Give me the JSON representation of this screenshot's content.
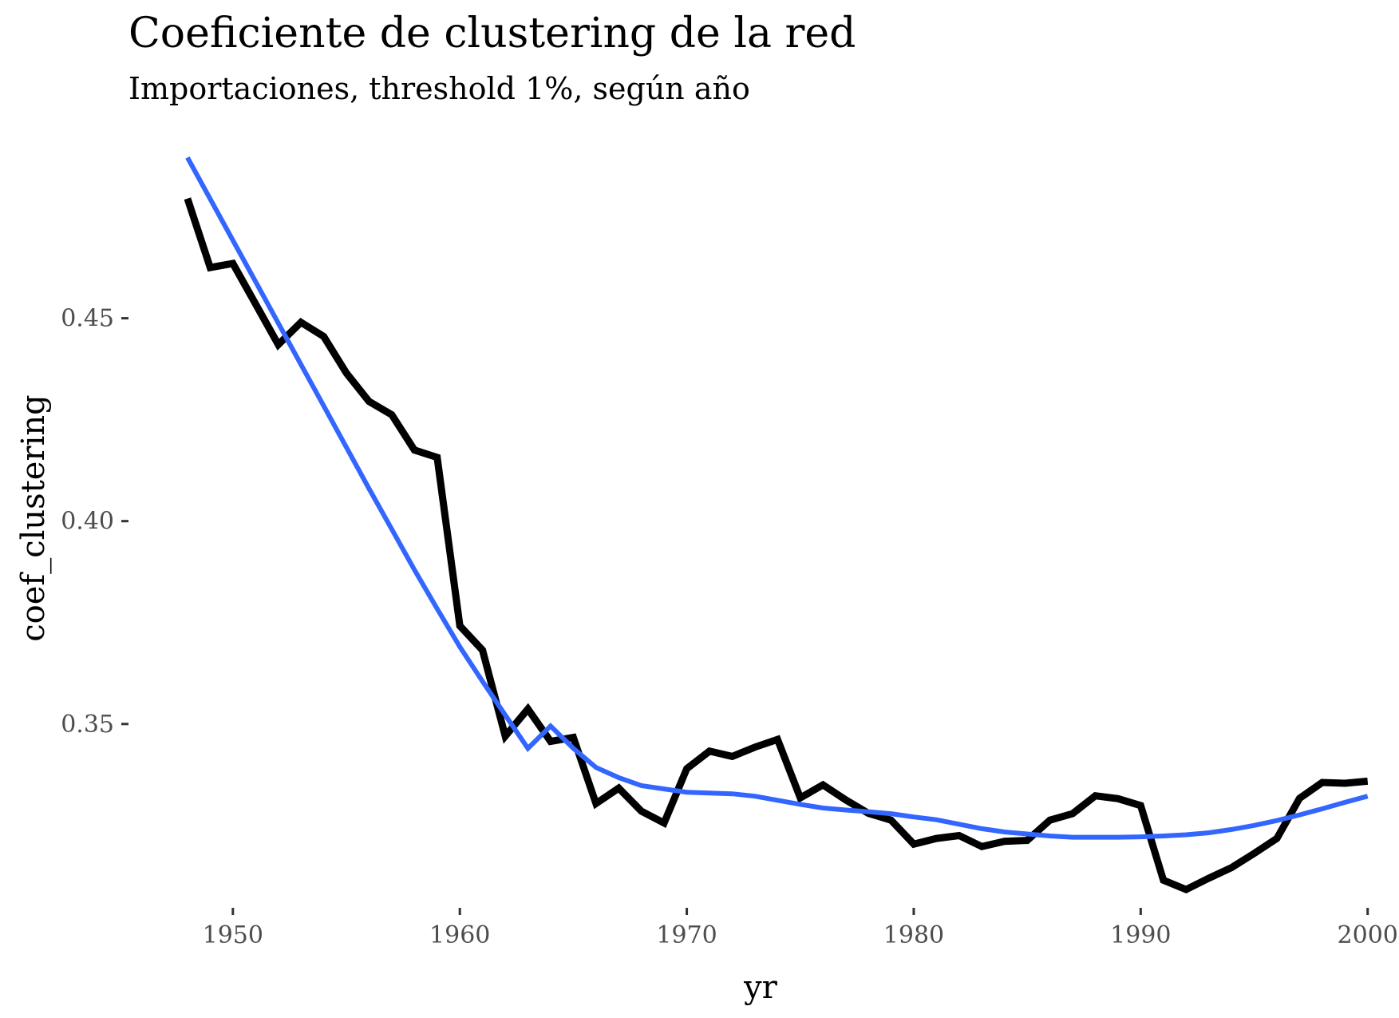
{
  "chart_data": {
    "type": "line",
    "title": "Coeficiente de clustering de la red",
    "subtitle": "Importaciones, threshold 1%, según año",
    "xlabel": "yr",
    "ylabel": "coef_clustering",
    "xlim": [
      1945.4,
      2001.1
    ],
    "ylim": [
      0.3047,
      0.4936
    ],
    "x_ticks": [
      1950,
      1960,
      1970,
      1980,
      1990,
      2000
    ],
    "x_tick_labels": [
      "1950",
      "1960",
      "1970",
      "1980",
      "1990",
      "2000"
    ],
    "y_ticks": [
      0.35,
      0.4,
      0.45
    ],
    "y_tick_labels": [
      "0.35",
      "0.40",
      "0.45"
    ],
    "grid": false,
    "legend": "none",
    "series": [
      {
        "color": "#000000",
        "x": [
          1948,
          1949,
          1950,
          1951,
          1952,
          1953,
          1954,
          1955,
          1956,
          1957,
          1958,
          1959,
          1960,
          1961,
          1962,
          1963,
          1964,
          1965,
          1966,
          1967,
          1968,
          1969,
          1970,
          1971,
          1972,
          1973,
          1974,
          1975,
          1976,
          1977,
          1978,
          1979,
          1980,
          1981,
          1982,
          1983,
          1984,
          1985,
          1986,
          1987,
          1988,
          1989,
          1990,
          1991,
          1992,
          1993,
          1994,
          1995,
          1996,
          1997,
          1998,
          1999,
          2000
        ],
        "y": [
          0.4795,
          0.4625,
          0.4635,
          0.4535,
          0.4435,
          0.449,
          0.4455,
          0.4365,
          0.4295,
          0.4262,
          0.4175,
          0.4157,
          0.3742,
          0.3682,
          0.347,
          0.3537,
          0.3457,
          0.3467,
          0.3304,
          0.3342,
          0.3285,
          0.3256,
          0.339,
          0.3433,
          0.342,
          0.3443,
          0.3462,
          0.3318,
          0.335,
          0.3313,
          0.328,
          0.3263,
          0.3204,
          0.3218,
          0.3225,
          0.3198,
          0.3211,
          0.3213,
          0.3263,
          0.3279,
          0.3323,
          0.3316,
          0.3299,
          0.3115,
          0.3092,
          0.312,
          0.3146,
          0.3181,
          0.3218,
          0.3317,
          0.3356,
          0.3354,
          0.3359
        ]
      },
      {
        "color": "#3366FF",
        "x": [
          1948,
          1949,
          1950,
          1951,
          1952,
          1953,
          1954,
          1955,
          1956,
          1957,
          1958,
          1959,
          1960,
          1961,
          1962,
          1963,
          1964,
          1965,
          1966,
          1967,
          1968,
          1969,
          1970,
          1971,
          1972,
          1973,
          1974,
          1975,
          1976,
          1977,
          1978,
          1979,
          1980,
          1981,
          1982,
          1983,
          1984,
          1985,
          1986,
          1987,
          1988,
          1989,
          1990,
          1991,
          1992,
          1993,
          1994,
          1995,
          1996,
          1997,
          1998,
          1999,
          2000
        ],
        "y": [
          0.4896,
          0.4794,
          0.4692,
          0.459,
          0.4488,
          0.4386,
          0.4284,
          0.4182,
          0.408,
          0.398,
          0.388,
          0.3784,
          0.369,
          0.3605,
          0.3522,
          0.344,
          0.3495,
          0.344,
          0.3393,
          0.3368,
          0.3348,
          0.334,
          0.3332,
          0.333,
          0.3328,
          0.3322,
          0.3312,
          0.3302,
          0.3293,
          0.3288,
          0.3284,
          0.3279,
          0.3271,
          0.3264,
          0.3253,
          0.3242,
          0.3234,
          0.3229,
          0.3224,
          0.3221,
          0.3221,
          0.3221,
          0.3222,
          0.3224,
          0.3227,
          0.3232,
          0.324,
          0.325,
          0.3262,
          0.3276,
          0.3291,
          0.3307,
          0.3322
        ]
      }
    ]
  }
}
